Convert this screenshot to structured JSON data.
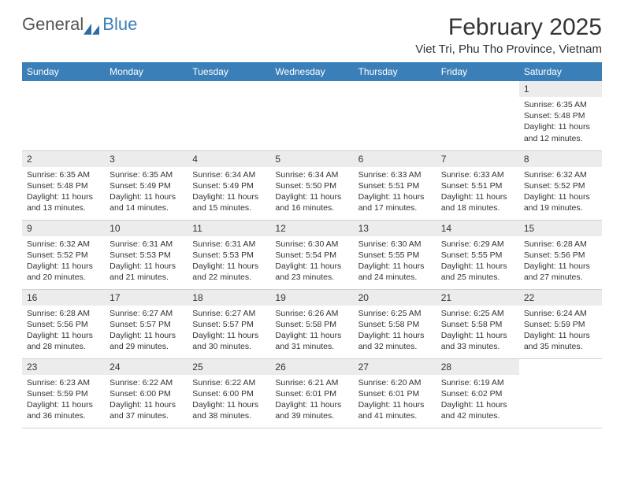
{
  "logo": {
    "text1": "General",
    "text2": "Blue"
  },
  "title": "February 2025",
  "location": "Viet Tri, Phu Tho Province, Vietnam",
  "colors": {
    "header_bg": "#3b7fb8",
    "daynum_bg": "#ececec",
    "text": "#333333",
    "border": "#d0d0d0"
  },
  "weekdays": [
    "Sunday",
    "Monday",
    "Tuesday",
    "Wednesday",
    "Thursday",
    "Friday",
    "Saturday"
  ],
  "weeks": [
    [
      null,
      null,
      null,
      null,
      null,
      null,
      {
        "n": "1",
        "sr": "Sunrise: 6:35 AM",
        "ss": "Sunset: 5:48 PM",
        "dl": "Daylight: 11 hours and 12 minutes."
      }
    ],
    [
      {
        "n": "2",
        "sr": "Sunrise: 6:35 AM",
        "ss": "Sunset: 5:48 PM",
        "dl": "Daylight: 11 hours and 13 minutes."
      },
      {
        "n": "3",
        "sr": "Sunrise: 6:35 AM",
        "ss": "Sunset: 5:49 PM",
        "dl": "Daylight: 11 hours and 14 minutes."
      },
      {
        "n": "4",
        "sr": "Sunrise: 6:34 AM",
        "ss": "Sunset: 5:49 PM",
        "dl": "Daylight: 11 hours and 15 minutes."
      },
      {
        "n": "5",
        "sr": "Sunrise: 6:34 AM",
        "ss": "Sunset: 5:50 PM",
        "dl": "Daylight: 11 hours and 16 minutes."
      },
      {
        "n": "6",
        "sr": "Sunrise: 6:33 AM",
        "ss": "Sunset: 5:51 PM",
        "dl": "Daylight: 11 hours and 17 minutes."
      },
      {
        "n": "7",
        "sr": "Sunrise: 6:33 AM",
        "ss": "Sunset: 5:51 PM",
        "dl": "Daylight: 11 hours and 18 minutes."
      },
      {
        "n": "8",
        "sr": "Sunrise: 6:32 AM",
        "ss": "Sunset: 5:52 PM",
        "dl": "Daylight: 11 hours and 19 minutes."
      }
    ],
    [
      {
        "n": "9",
        "sr": "Sunrise: 6:32 AM",
        "ss": "Sunset: 5:52 PM",
        "dl": "Daylight: 11 hours and 20 minutes."
      },
      {
        "n": "10",
        "sr": "Sunrise: 6:31 AM",
        "ss": "Sunset: 5:53 PM",
        "dl": "Daylight: 11 hours and 21 minutes."
      },
      {
        "n": "11",
        "sr": "Sunrise: 6:31 AM",
        "ss": "Sunset: 5:53 PM",
        "dl": "Daylight: 11 hours and 22 minutes."
      },
      {
        "n": "12",
        "sr": "Sunrise: 6:30 AM",
        "ss": "Sunset: 5:54 PM",
        "dl": "Daylight: 11 hours and 23 minutes."
      },
      {
        "n": "13",
        "sr": "Sunrise: 6:30 AM",
        "ss": "Sunset: 5:55 PM",
        "dl": "Daylight: 11 hours and 24 minutes."
      },
      {
        "n": "14",
        "sr": "Sunrise: 6:29 AM",
        "ss": "Sunset: 5:55 PM",
        "dl": "Daylight: 11 hours and 25 minutes."
      },
      {
        "n": "15",
        "sr": "Sunrise: 6:28 AM",
        "ss": "Sunset: 5:56 PM",
        "dl": "Daylight: 11 hours and 27 minutes."
      }
    ],
    [
      {
        "n": "16",
        "sr": "Sunrise: 6:28 AM",
        "ss": "Sunset: 5:56 PM",
        "dl": "Daylight: 11 hours and 28 minutes."
      },
      {
        "n": "17",
        "sr": "Sunrise: 6:27 AM",
        "ss": "Sunset: 5:57 PM",
        "dl": "Daylight: 11 hours and 29 minutes."
      },
      {
        "n": "18",
        "sr": "Sunrise: 6:27 AM",
        "ss": "Sunset: 5:57 PM",
        "dl": "Daylight: 11 hours and 30 minutes."
      },
      {
        "n": "19",
        "sr": "Sunrise: 6:26 AM",
        "ss": "Sunset: 5:58 PM",
        "dl": "Daylight: 11 hours and 31 minutes."
      },
      {
        "n": "20",
        "sr": "Sunrise: 6:25 AM",
        "ss": "Sunset: 5:58 PM",
        "dl": "Daylight: 11 hours and 32 minutes."
      },
      {
        "n": "21",
        "sr": "Sunrise: 6:25 AM",
        "ss": "Sunset: 5:58 PM",
        "dl": "Daylight: 11 hours and 33 minutes."
      },
      {
        "n": "22",
        "sr": "Sunrise: 6:24 AM",
        "ss": "Sunset: 5:59 PM",
        "dl": "Daylight: 11 hours and 35 minutes."
      }
    ],
    [
      {
        "n": "23",
        "sr": "Sunrise: 6:23 AM",
        "ss": "Sunset: 5:59 PM",
        "dl": "Daylight: 11 hours and 36 minutes."
      },
      {
        "n": "24",
        "sr": "Sunrise: 6:22 AM",
        "ss": "Sunset: 6:00 PM",
        "dl": "Daylight: 11 hours and 37 minutes."
      },
      {
        "n": "25",
        "sr": "Sunrise: 6:22 AM",
        "ss": "Sunset: 6:00 PM",
        "dl": "Daylight: 11 hours and 38 minutes."
      },
      {
        "n": "26",
        "sr": "Sunrise: 6:21 AM",
        "ss": "Sunset: 6:01 PM",
        "dl": "Daylight: 11 hours and 39 minutes."
      },
      {
        "n": "27",
        "sr": "Sunrise: 6:20 AM",
        "ss": "Sunset: 6:01 PM",
        "dl": "Daylight: 11 hours and 41 minutes."
      },
      {
        "n": "28",
        "sr": "Sunrise: 6:19 AM",
        "ss": "Sunset: 6:02 PM",
        "dl": "Daylight: 11 hours and 42 minutes."
      },
      null
    ]
  ]
}
